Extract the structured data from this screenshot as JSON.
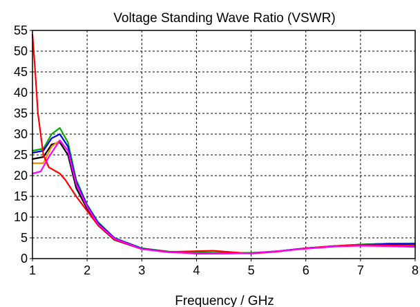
{
  "chart_data": {
    "type": "line",
    "title": "Voltage Standing Wave Ratio (VSWR)",
    "xlabel": "Frequency / GHz",
    "ylabel": "",
    "xlim": [
      1,
      8
    ],
    "ylim": [
      0,
      55
    ],
    "x_ticks": [
      1,
      2,
      3,
      4,
      5,
      6,
      7,
      8
    ],
    "y_ticks": [
      0,
      5,
      10,
      15,
      20,
      25,
      30,
      35,
      40,
      45,
      50,
      55
    ],
    "grid": true,
    "legend": "none",
    "series": [
      {
        "color": "#000000",
        "points": [
          [
            1,
            24
          ],
          [
            1.2,
            24.5
          ],
          [
            1.35,
            27.5
          ],
          [
            1.5,
            28
          ],
          [
            1.65,
            25
          ],
          [
            1.8,
            17
          ],
          [
            2,
            12
          ],
          [
            2.2,
            8
          ],
          [
            2.5,
            4.5
          ],
          [
            3,
            2.3
          ],
          [
            3.5,
            1.6
          ],
          [
            4,
            1.4
          ],
          [
            4.5,
            1.3
          ],
          [
            5,
            1.3
          ],
          [
            5.5,
            1.8
          ],
          [
            6,
            2.5
          ],
          [
            6.5,
            3
          ],
          [
            7,
            3.4
          ],
          [
            7.5,
            3.6
          ],
          [
            8,
            3.6
          ]
        ]
      },
      {
        "color": "#ff8c00",
        "points": [
          [
            1,
            23
          ],
          [
            1.2,
            23
          ],
          [
            1.35,
            27
          ],
          [
            1.5,
            28.5
          ],
          [
            1.65,
            26
          ],
          [
            1.8,
            18
          ],
          [
            2,
            12.5
          ],
          [
            2.2,
            8.5
          ],
          [
            2.5,
            4.8
          ],
          [
            3,
            2.4
          ],
          [
            3.5,
            1.6
          ],
          [
            4,
            1.4
          ],
          [
            4.5,
            1.3
          ],
          [
            5,
            1.3
          ],
          [
            5.5,
            1.8
          ],
          [
            6,
            2.4
          ],
          [
            6.5,
            2.9
          ],
          [
            7,
            3.3
          ],
          [
            7.5,
            3.4
          ],
          [
            8,
            3.3
          ]
        ]
      },
      {
        "color": "#00aa00",
        "points": [
          [
            1,
            26
          ],
          [
            1.2,
            26.5
          ],
          [
            1.35,
            30
          ],
          [
            1.5,
            31.5
          ],
          [
            1.65,
            28
          ],
          [
            1.8,
            19
          ],
          [
            2,
            13
          ],
          [
            2.2,
            8.8
          ],
          [
            2.5,
            5
          ],
          [
            3,
            2.5
          ],
          [
            3.5,
            1.7
          ],
          [
            4,
            1.5
          ],
          [
            4.5,
            1.4
          ],
          [
            5,
            1.4
          ],
          [
            5.5,
            1.8
          ],
          [
            6,
            2.5
          ],
          [
            6.5,
            3
          ],
          [
            7,
            3.4
          ],
          [
            7.5,
            3.6
          ],
          [
            8,
            3.7
          ]
        ]
      },
      {
        "color": "#0000ff",
        "points": [
          [
            1,
            25.5
          ],
          [
            1.2,
            26
          ],
          [
            1.35,
            29
          ],
          [
            1.5,
            30
          ],
          [
            1.65,
            27
          ],
          [
            1.8,
            18.5
          ],
          [
            2,
            12.8
          ],
          [
            2.2,
            8.6
          ],
          [
            2.5,
            4.9
          ],
          [
            3,
            2.4
          ],
          [
            3.5,
            1.6
          ],
          [
            4,
            1.2
          ],
          [
            4.5,
            1.2
          ],
          [
            5,
            1.3
          ],
          [
            5.5,
            1.8
          ],
          [
            6,
            2.5
          ],
          [
            6.5,
            3
          ],
          [
            7,
            3.3
          ],
          [
            7.5,
            3.5
          ],
          [
            8,
            3.5
          ]
        ]
      },
      {
        "color": "#ff0000",
        "points": [
          [
            1,
            54
          ],
          [
            1.05,
            45
          ],
          [
            1.1,
            35
          ],
          [
            1.2,
            25
          ],
          [
            1.3,
            22
          ],
          [
            1.5,
            20.5
          ],
          [
            1.6,
            19
          ],
          [
            1.7,
            17
          ],
          [
            1.8,
            15
          ],
          [
            2,
            11.5
          ],
          [
            2.2,
            8
          ],
          [
            2.5,
            4.6
          ],
          [
            3,
            2.3
          ],
          [
            3.5,
            1.6
          ],
          [
            4,
            1.8
          ],
          [
            4.3,
            1.9
          ],
          [
            4.6,
            1.6
          ],
          [
            5,
            1.2
          ],
          [
            5.5,
            1.7
          ],
          [
            6,
            2.5
          ],
          [
            6.5,
            3
          ],
          [
            7,
            3.3
          ],
          [
            7.5,
            3.2
          ],
          [
            8,
            3
          ]
        ]
      },
      {
        "color": "#ff00ff",
        "points": [
          [
            1,
            20.5
          ],
          [
            1.15,
            21
          ],
          [
            1.3,
            24.5
          ],
          [
            1.5,
            28.5
          ],
          [
            1.65,
            26
          ],
          [
            1.8,
            18
          ],
          [
            2,
            12.5
          ],
          [
            2.2,
            8.3
          ],
          [
            2.5,
            4.8
          ],
          [
            3,
            2.3
          ],
          [
            3.5,
            1.5
          ],
          [
            4,
            1.3
          ],
          [
            4.5,
            1.2
          ],
          [
            5,
            1.3
          ],
          [
            5.5,
            1.8
          ],
          [
            6,
            2.4
          ],
          [
            6.5,
            2.9
          ],
          [
            7,
            3.1
          ],
          [
            7.5,
            3
          ],
          [
            8,
            2.8
          ]
        ]
      }
    ]
  }
}
